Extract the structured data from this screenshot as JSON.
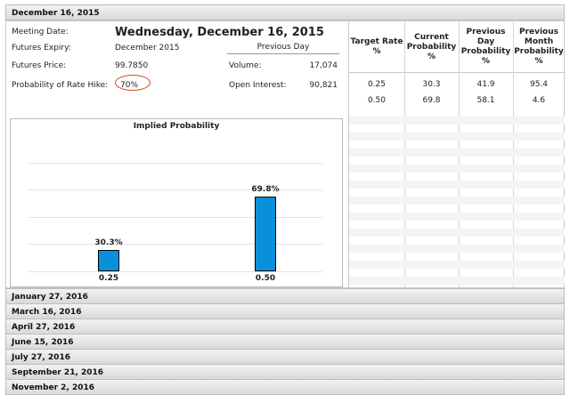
{
  "meetings": {
    "active": "December 16, 2015",
    "collapsed": [
      "January 27, 2016",
      "March 16, 2016",
      "April 27, 2016",
      "June 15, 2016",
      "July 27, 2016",
      "September 21, 2016",
      "November 2, 2016"
    ]
  },
  "info": {
    "meeting_date_label": "Meeting Date:",
    "meeting_date_value": "Wednesday, December 16, 2015",
    "previous_day_label": "Previous Day",
    "futures_expiry_label": "Futures Expiry:",
    "futures_expiry_value": "December 2015",
    "futures_price_label": "Futures Price:",
    "futures_price_value": "99.7850",
    "volume_label": "Volume:",
    "volume_value": "17,074",
    "prob_hike_label": "Probability of Rate Hike:",
    "prob_hike_value": "70%",
    "open_interest_label": "Open Interest:",
    "open_interest_value": "90,821"
  },
  "chart_data": {
    "type": "bar",
    "title": "Implied Probability",
    "categories": [
      "0.25",
      "0.50"
    ],
    "values": [
      30.3,
      69.8
    ],
    "data_labels": [
      "30.3%",
      "69.8%"
    ],
    "ylim": [
      0,
      100
    ],
    "grid": true
  },
  "table": {
    "headers": [
      "Target Rate %",
      "Current Probability %",
      "Previous Day Probability %",
      "Previous Month Probability %"
    ],
    "rows": [
      [
        "0.25",
        "30.3",
        "41.9",
        "95.4"
      ],
      [
        "0.50",
        "69.8",
        "58.1",
        "4.6"
      ]
    ]
  },
  "colors": {
    "bar": "#0a90db",
    "highlight_ring": "#d9482b"
  }
}
